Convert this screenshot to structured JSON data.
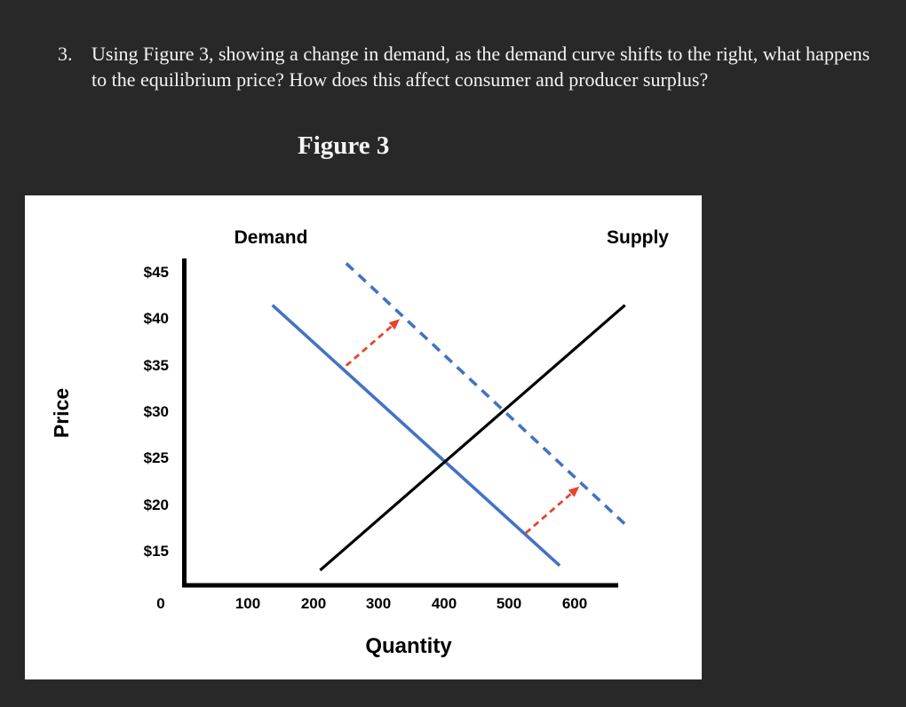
{
  "question": {
    "number": "3.",
    "text": "Using Figure 3, showing a change in demand, as the demand curve shifts to the right, what happens to the equilibrium price?  How does this affect consumer and producer surplus?"
  },
  "figure": {
    "title": "Figure 3"
  },
  "chart_data": {
    "type": "line",
    "title": "Figure 3",
    "xlabel": "Quantity",
    "ylabel": "Price",
    "x_origin_label": "0",
    "x_tick_labels": [
      "100",
      "200",
      "300",
      "400",
      "500",
      "600"
    ],
    "x_tick_values": [
      100,
      200,
      300,
      400,
      500,
      600
    ],
    "y_tick_labels": [
      "$45",
      "$40",
      "$35",
      "$30",
      "$25",
      "$20",
      "$15"
    ],
    "y_tick_values": [
      45,
      40,
      35,
      30,
      25,
      20,
      15
    ],
    "xlim": [
      0,
      660
    ],
    "ylim": [
      11,
      47
    ],
    "grid": false,
    "curve_labels": {
      "demand": "Demand",
      "supply": "Supply"
    },
    "series": [
      {
        "name": "demand",
        "label": "Demand",
        "line_style": "solid",
        "color": "#4472c4",
        "points": [
          [
            137,
            41.5
          ],
          [
            577,
            13.5
          ]
        ]
      },
      {
        "name": "demand-shifted",
        "label": "Demand shifted right",
        "line_style": "dashed",
        "color": "#4472c4",
        "points": [
          [
            250,
            46
          ],
          [
            684,
            17.5
          ]
        ]
      },
      {
        "name": "supply",
        "label": "Supply",
        "line_style": "solid",
        "color": "#000000",
        "points": [
          [
            210,
            13
          ],
          [
            677,
            41.5
          ]
        ]
      }
    ],
    "shift_arrows": [
      {
        "name": "upper-shift-arrow",
        "from": [
          250,
          35
        ],
        "to": [
          332,
          40
        ],
        "color": "#e8432c",
        "line_style": "dashed"
      },
      {
        "name": "lower-shift-arrow",
        "from": [
          525,
          17
        ],
        "to": [
          607,
          22
        ],
        "color": "#e8432c",
        "line_style": "dashed"
      }
    ]
  },
  "colors": {
    "page_background": "#282828",
    "panel_background": "#ffffff",
    "text": "#f4f4f4",
    "demand_blue": "#4472c4",
    "arrow_red": "#e8432c",
    "axis_black": "#000000"
  }
}
